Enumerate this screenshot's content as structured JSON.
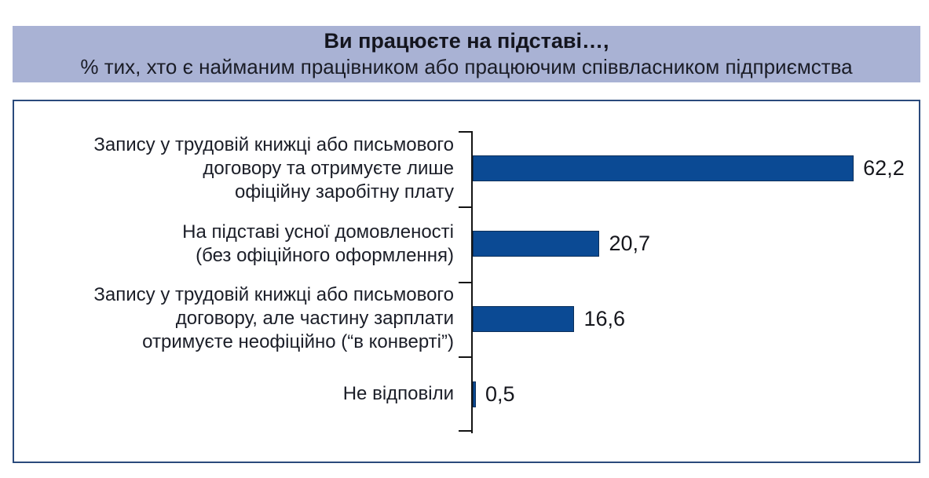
{
  "header": {
    "title": "Ви працюєте на підставі…,",
    "subtitle": "% тих, хто є найманим працівником або працюючим співвласником підприємства"
  },
  "chart_data": {
    "type": "bar",
    "orientation": "horizontal",
    "title": "Ви працюєте на підставі…,",
    "subtitle": "% тих, хто є найманим працівником або працюючим співвласником підприємства",
    "xlabel": "",
    "ylabel": "",
    "xlim": [
      0,
      70
    ],
    "grid": false,
    "legend": "none",
    "unit": "%",
    "categories": [
      "Запису у трудовій книжці або письмового договору та отримуєте лише офіційну заробітну плату",
      "На підставі усної домовленості (без офіційного оформлення)",
      "Запису у трудовій книжці або письмового договору, але частину зарплати отримуєте неофіційно (“в конверті”)",
      "Не відповіли"
    ],
    "category_lines": [
      [
        "Запису у трудовій книжці або письмового",
        "договору та отримуєте лише",
        "офіційну заробітну плату"
      ],
      [
        "На підставі усної домовленості",
        "(без офіційного оформлення)"
      ],
      [
        "Запису у трудовій книжці або письмового",
        "договору, але частину зарплати",
        "отримуєте неофіційно (“в конверті”)"
      ],
      [
        "Не відповіли"
      ]
    ],
    "values": [
      62.2,
      20.7,
      16.6,
      0.5
    ],
    "value_labels": [
      "62,2",
      "20,7",
      "16,6",
      "0,5"
    ]
  },
  "colors": {
    "header_bg": "#a9b2d4",
    "box_border": "#2a4a7c",
    "bar_fill": "#0b4a94",
    "bar_border": "#0c2f5a",
    "axis_color": "#141414",
    "text_dark": "#15161c",
    "label_color": "#1b1e28"
  }
}
